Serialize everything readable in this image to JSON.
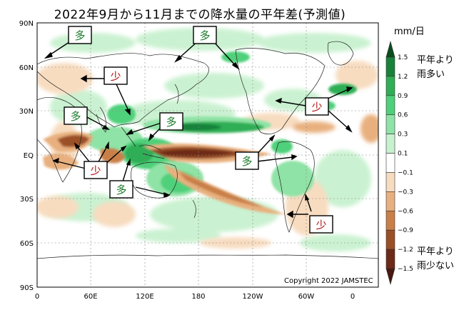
{
  "title": "2022年9月から11月までの降水量の平年差(予測値)",
  "map": {
    "lat_labels": [
      "90N",
      "60N",
      "30N",
      "EQ",
      "30S",
      "60S",
      "90S"
    ],
    "lon_labels": [
      "0",
      "60E",
      "120E",
      "180",
      "120W",
      "60W",
      "0"
    ],
    "copyright": "Copyright 2022 JAMSTEC",
    "annotations": [
      {
        "text": "多",
        "kind": "wet"
      },
      {
        "text": "多",
        "kind": "wet"
      },
      {
        "text": "少",
        "kind": "dry"
      },
      {
        "text": "多",
        "kind": "wet"
      },
      {
        "text": "多",
        "kind": "wet"
      },
      {
        "text": "少",
        "kind": "dry"
      },
      {
        "text": "少",
        "kind": "dry"
      },
      {
        "text": "多",
        "kind": "wet"
      },
      {
        "text": "多",
        "kind": "wet"
      },
      {
        "text": "少",
        "kind": "dry"
      }
    ]
  },
  "colorbar": {
    "unit": "mm/日",
    "tick_labels": [
      "1.5",
      "1.2",
      "0.9",
      "0.6",
      "0.3",
      "0.1",
      "−0.1",
      "−0.3",
      "−0.6",
      "−0.9",
      "−1.2",
      "−1.5"
    ],
    "colors": [
      "#0b4d1c",
      "#19823a",
      "#2fae55",
      "#4fd07a",
      "#8fe3a6",
      "#c8f1cf",
      "#ffffff",
      "#f7dcc0",
      "#e8b07e",
      "#c97f47",
      "#9b4f26",
      "#6e2a18",
      "#4a1810"
    ],
    "wet_text_1": "平年より",
    "wet_text_2": "雨多い",
    "dry_text_1": "平年より",
    "dry_text_2": "雨少ない"
  },
  "colors": {
    "wet_label": "#1a7a2a",
    "dry_label": "#b01010"
  }
}
